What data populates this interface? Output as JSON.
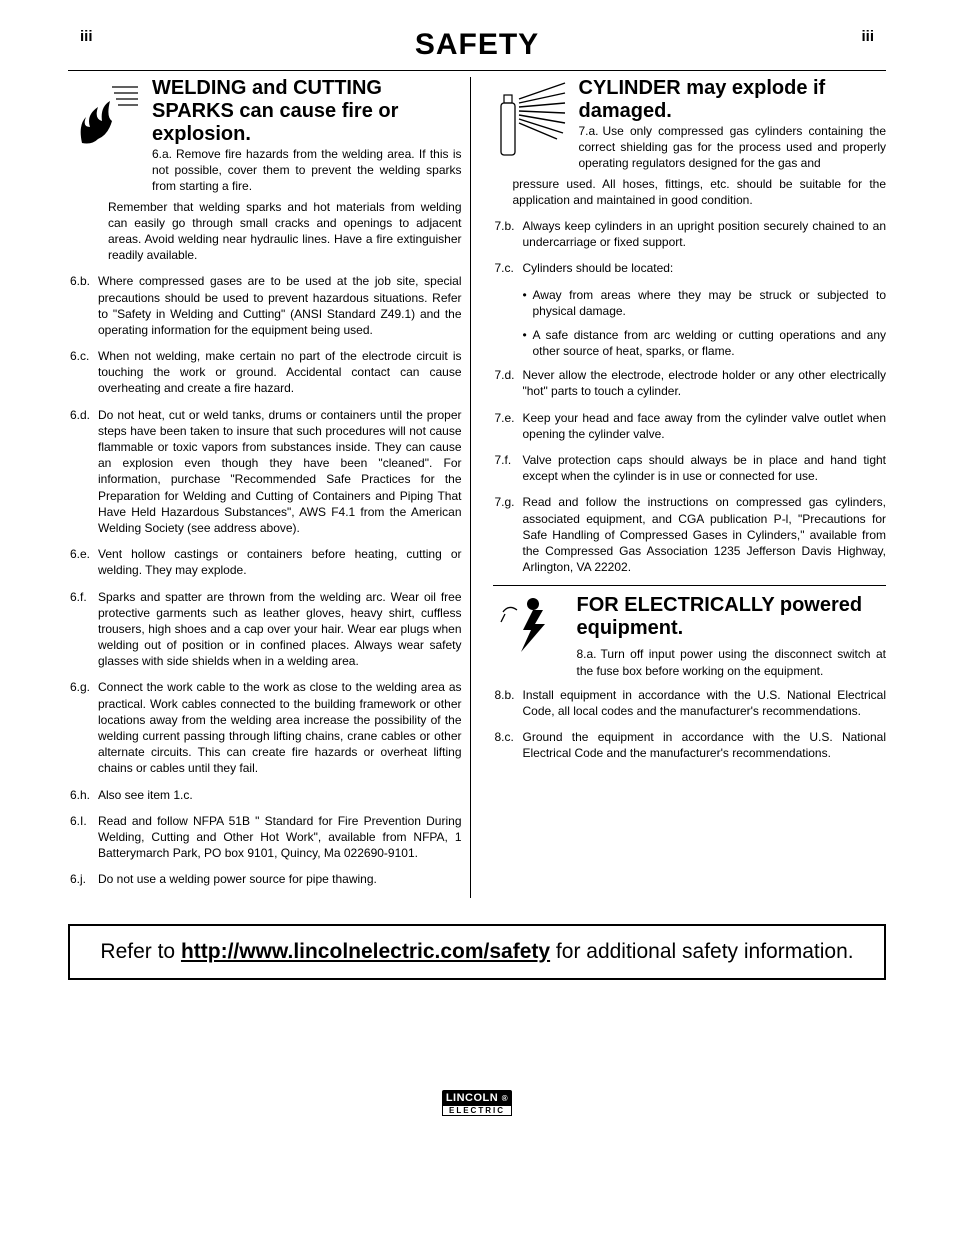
{
  "pageNumber": "iii",
  "title": "SAFETY",
  "left": {
    "heading": "WELDING and CUTTING SPARKS can cause fire or explosion.",
    "firstLabel": "6.a.",
    "firstText": "Remove fire hazards from the welding area. If this is not possible, cover them to prevent the welding sparks from starting a fire. Remember that welding sparks and hot materials from welding can easily go through small cracks and openings to adjacent areas. Avoid welding near hydraulic lines. Have a fire extinguisher readily available.",
    "items": [
      {
        "label": "6.b.",
        "text": "Where compressed gases are to be used at the job site, special precautions should be used to prevent hazardous situations. Refer to \"Safety in Welding and Cutting\" (ANSI Standard Z49.1) and the operating information for the equipment being used."
      },
      {
        "label": "6.c.",
        "text": "When not welding, make certain no part of the electrode circuit is touching the work or ground. Accidental contact can cause overheating and create a fire hazard."
      },
      {
        "label": "6.d.",
        "text": "Do not heat, cut or weld tanks, drums or containers until the proper steps have been taken to insure that such procedures will not cause flammable or toxic vapors from substances inside. They can cause an explosion even though they have been \"cleaned\". For information, purchase \"Recommended Safe Practices for the Preparation for Welding and Cutting of Containers and Piping That Have Held Hazardous Substances\", AWS F4.1 from the American Welding Society (see address above)."
      },
      {
        "label": "6.e.",
        "text": "Vent hollow castings or containers before heating, cutting or welding. They may explode."
      },
      {
        "label": "6.f.",
        "text": "Sparks and spatter are thrown from the welding arc. Wear oil free protective garments such as leather gloves, heavy shirt, cuffless trousers, high shoes and a cap over your hair. Wear ear plugs when welding out of position or in confined places. Always wear safety glasses with side shields when in a welding area."
      },
      {
        "label": "6.g.",
        "text": "Connect the work cable to the work as close to the welding area as practical. Work cables connected to the building framework or other locations away from the welding area increase the possibility of the welding current passing through lifting chains, crane cables or other alternate circuits. This can create fire hazards or overheat lifting chains or cables until they fail."
      },
      {
        "label": "6.h.",
        "text": "Also see item 1.c."
      },
      {
        "label": "6.I.",
        "text": "Read and follow NFPA 51B \" Standard for Fire Prevention During Welding, Cutting and Other Hot Work\", available from NFPA, 1 Batterymarch Park, PO box 9101, Quincy, Ma 022690-9101."
      },
      {
        "label": "6.j.",
        "text": "Do not use a welding power source for pipe thawing."
      }
    ]
  },
  "rightTop": {
    "heading": "CYLINDER may explode if damaged.",
    "firstLabel": "7.a.",
    "firstText": "Use only compressed gas cylinders containing the correct shielding gas for the process used and properly operating regulators designed for the gas and pressure used. All hoses, fittings, etc. should be suitable for the application and maintained in good condition.",
    "items": [
      {
        "label": "7.b.",
        "text": "Always keep cylinders in an upright position securely chained to an undercarriage or fixed support."
      },
      {
        "label": "7.c.",
        "text": "Cylinders should be located:",
        "subs": [
          {
            "text": "Away from areas where they may be struck or subjected to physical damage."
          },
          {
            "text": "A safe distance from arc welding or cutting operations and any other source of heat, sparks, or flame."
          }
        ]
      },
      {
        "label": "7.d.",
        "text": "Never allow the electrode, electrode holder or any other electrically \"hot\" parts to touch a cylinder."
      },
      {
        "label": "7.e.",
        "text": "Keep your head and face away from the cylinder valve outlet when opening the cylinder valve."
      },
      {
        "label": "7.f.",
        "text": "Valve protection caps should always be in place and hand tight except when the cylinder is in use or connected for use."
      },
      {
        "label": "7.g.",
        "text": "Read and follow the instructions on compressed gas cylinders, associated equipment, and CGA publication P-l, \"Precautions for Safe Handling of Compressed Gases in Cylinders,\" available from the Compressed Gas Association 1235 Jefferson Davis Highway, Arlington, VA 22202."
      }
    ]
  },
  "rightBottom": {
    "heading": "FOR ELECTRICALLY powered equipment.",
    "firstLabel": "8.a.",
    "firstText": "Turn off input power using the disconnect switch at the fuse box before working on the equipment.",
    "items": [
      {
        "label": "8.b.",
        "text": "Install equipment in accordance with the U.S. National Electrical Code, all local codes and the manufacturer's recommendations."
      },
      {
        "label": "8.c.",
        "text": "Ground the equipment in accordance with the U.S. National Electrical Code and the manufacturer's recommendations."
      }
    ]
  },
  "footer": {
    "pre": "Refer to ",
    "url": "http://www.lincolnelectric.com/safety",
    "post": " for additional safety information."
  },
  "logo": {
    "top": "LINCOLN",
    "bot": "ELECTRIC"
  }
}
